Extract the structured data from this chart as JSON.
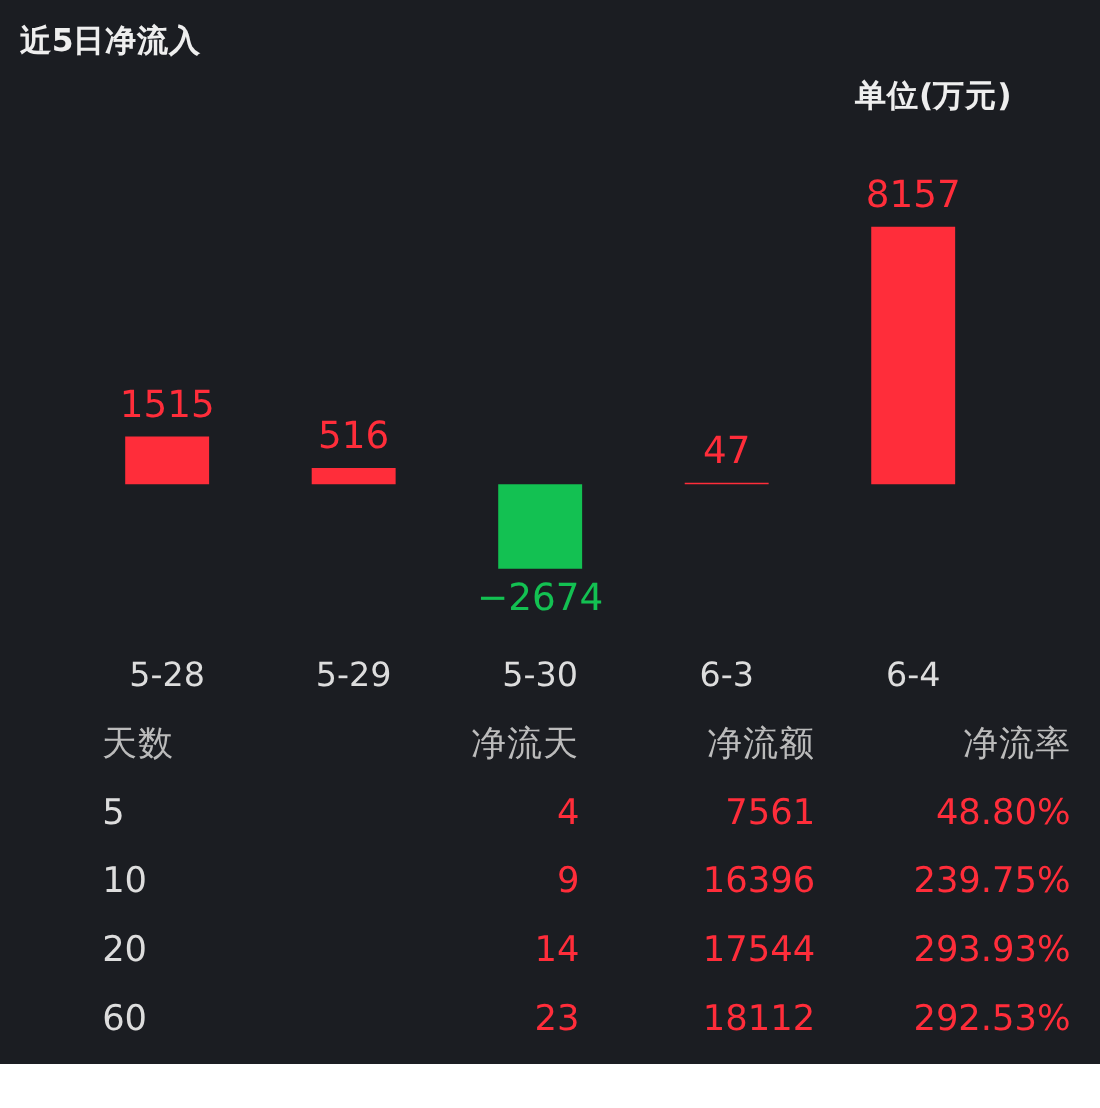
{
  "chart_data": [
    {
      "type": "bar",
      "title": "近5日净流入",
      "annotations": [
        "单位(万元)"
      ],
      "categories": [
        "5-28",
        "5-29",
        "5-30",
        "6-3",
        "6-4"
      ],
      "values": [
        1515,
        516,
        -2674,
        47,
        8157
      ],
      "colors": [
        "#ff2d3a",
        "#ff2d3a",
        "#13c152",
        "#ff2d3a",
        "#ff2d3a"
      ],
      "data_labels": true
    },
    {
      "type": "other",
      "annotations": [
        "天数",
        "净流天",
        "净流额",
        "净流率",
        "5",
        "4",
        "7561",
        "48.80%",
        "10",
        "9",
        "16396",
        "239.75%",
        "20",
        "14",
        "17544",
        "293.93%",
        "60",
        "23",
        "18112",
        "292.53%"
      ]
    }
  ]
}
